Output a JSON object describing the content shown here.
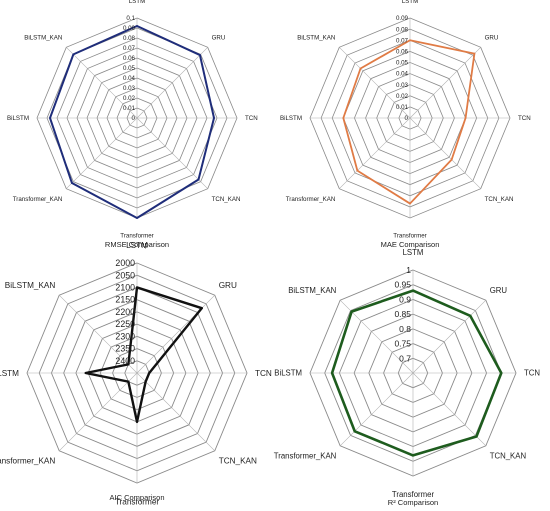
{
  "chart_data": [
    {
      "type": "radar",
      "title": "RMSE Comparison",
      "axes": [
        "LSTM",
        "GRU",
        "TCN",
        "TCN_KAN",
        "Transformer",
        "Transformer_KAN",
        "BiLSTM",
        "BiLSTM_KAN"
      ],
      "ticks": [
        "0.1",
        "0.09",
        "0.08",
        "0.07",
        "0.06",
        "0.05",
        "0.04",
        "0.03",
        "0.02",
        "0.01",
        "0"
      ],
      "range": [
        0,
        0.1
      ],
      "reversed": false,
      "values": [
        0.092,
        0.089,
        0.077,
        0.087,
        0.1,
        0.092,
        0.087,
        0.09
      ],
      "color": "#1f2d7a"
    },
    {
      "type": "radar",
      "title": "MAE Comparison",
      "axes": [
        "LSTM",
        "GRU",
        "TCN",
        "TCN_KAN",
        "Transformer",
        "Transformer_KAN",
        "BiLSTM",
        "BiLSTM_KAN"
      ],
      "ticks": [
        "0.09",
        "0.08",
        "0.07",
        "0.06",
        "0.05",
        "0.04",
        "0.03",
        "0.02",
        "0.01",
        "0"
      ],
      "range": [
        0,
        0.09
      ],
      "reversed": false,
      "values": [
        0.07,
        0.082,
        0.05,
        0.053,
        0.077,
        0.067,
        0.06,
        0.063
      ],
      "color": "#e07b45"
    },
    {
      "type": "radar",
      "title": "AIC Comparison",
      "axes": [
        "LSTM",
        "GRU",
        "TCN",
        "TCN_KAN",
        "Transformer",
        "Transformer_KAN",
        "BiLSTM",
        "BiLSTM_KAN"
      ],
      "ticks": [
        "2000",
        "2050",
        "2100",
        "2150",
        "2200",
        "2250",
        "2300",
        "2350",
        "2400"
      ],
      "range": [
        2000,
        2450
      ],
      "reversed": true,
      "values": [
        2100,
        2075,
        2400,
        2400,
        2250,
        2400,
        2240,
        2400
      ],
      "color": "#111111"
    },
    {
      "type": "radar",
      "title": "R² Comparison",
      "axes": [
        "LSTM",
        "GRU",
        "TCN",
        "TCN_KAN",
        "Transformer",
        "Transformer_KAN",
        "BiLSTM",
        "BiLSTM_KAN"
      ],
      "ticks": [
        "1",
        "0.95",
        "0.9",
        "0.85",
        "0.8",
        "0.75",
        "0.7"
      ],
      "range": [
        0.65,
        1
      ],
      "reversed": false,
      "values": [
        0.93,
        0.925,
        0.95,
        0.955,
        0.93,
        0.93,
        0.925,
        0.945
      ],
      "color": "#1e5c1e"
    }
  ]
}
